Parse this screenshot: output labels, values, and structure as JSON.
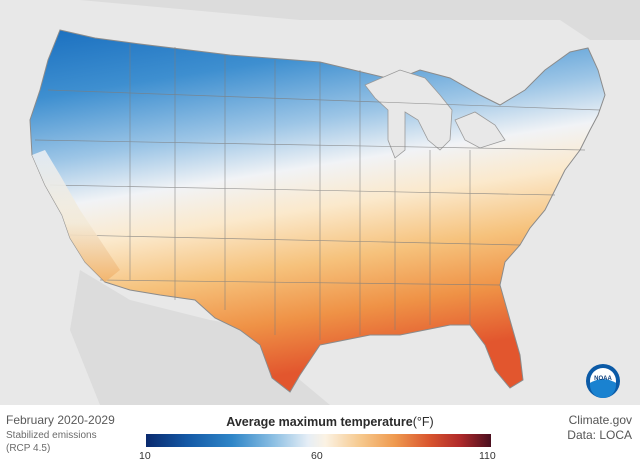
{
  "map": {
    "period": "February 2020-2029",
    "scenario_line1": "Stabilized emissions",
    "scenario_line2": "(RCP 4.5)"
  },
  "legend": {
    "title": "Average maximum temperature",
    "unit": "(°F)",
    "min_label": "10",
    "mid_label": "60",
    "max_label": "110",
    "range": [
      10,
      110
    ],
    "colors": [
      "#0a2a6e",
      "#1459a6",
      "#2f86c8",
      "#8cbfe3",
      "#e6eef6",
      "#fbf2e3",
      "#f6c98e",
      "#ef9a4f",
      "#d9562f",
      "#b02a2a",
      "#4a0f1f"
    ]
  },
  "credits": {
    "source": "Climate.gov",
    "data": "Data: LOCA"
  },
  "logo": {
    "text": "NOAA"
  }
}
